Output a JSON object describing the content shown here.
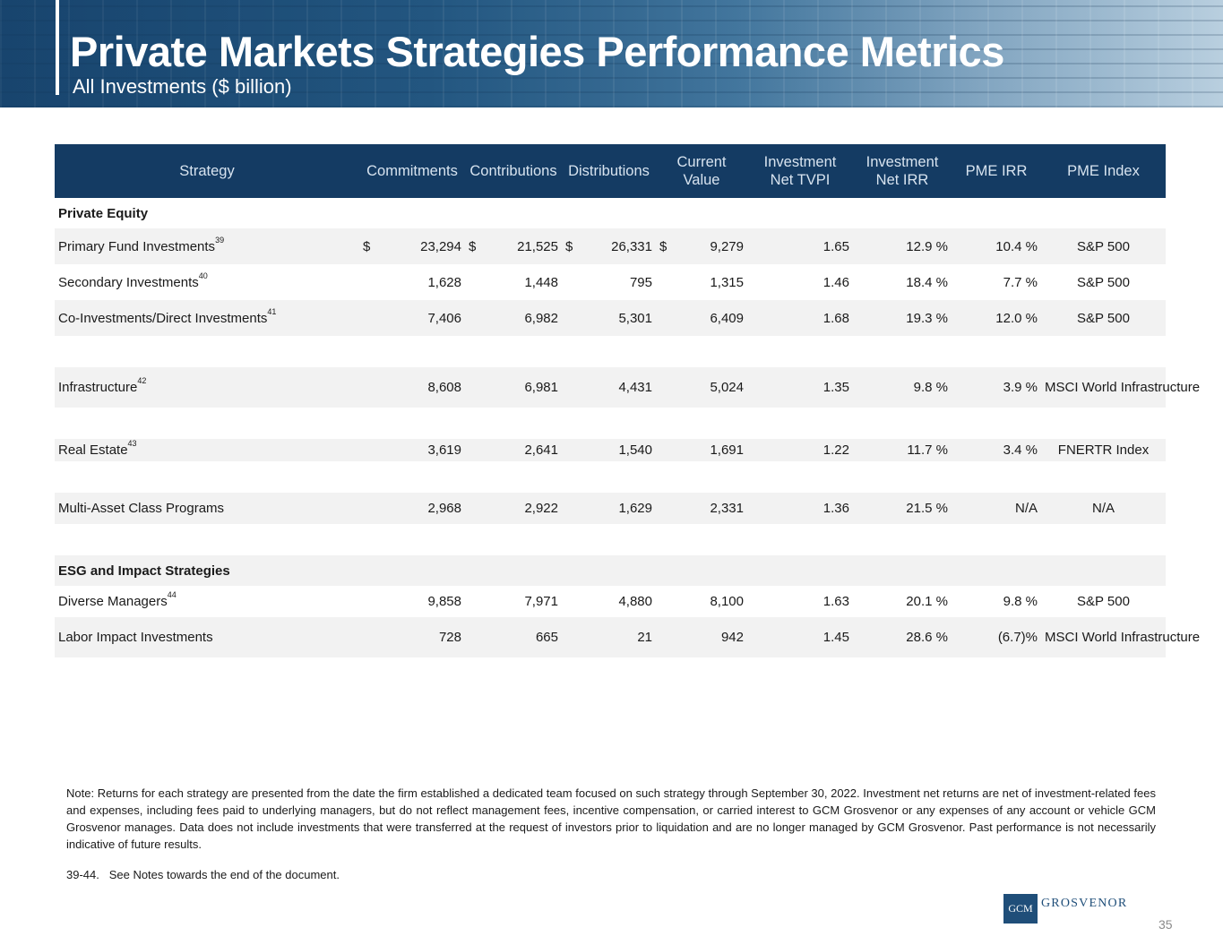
{
  "header": {
    "title": "Private Markets Strategies Performance Metrics",
    "subtitle": "All Investments ($ billion)"
  },
  "table": {
    "columns": [
      "Strategy",
      "Commitments",
      "Contributions",
      "Distributions",
      "Current Value",
      "Investment Net TVPI",
      "Investment Net IRR",
      "PME IRR",
      "PME Index"
    ],
    "section_private_equity": "Private Equity",
    "section_esg": "ESG and Impact Strategies",
    "currency_symbol": "$",
    "rows": [
      {
        "strategy": "Primary Fund Investments",
        "note": "39",
        "commitments": "23,294",
        "contributions": "21,525",
        "distributions": "26,331",
        "current_value": "9,279",
        "tvpi": "1.65",
        "net_irr": "12.9 %",
        "pme_irr": "10.4 %",
        "pme_index": "S&P 500"
      },
      {
        "strategy": "Secondary Investments",
        "note": "40",
        "commitments": "1,628",
        "contributions": "1,448",
        "distributions": "795",
        "current_value": "1,315",
        "tvpi": "1.46",
        "net_irr": "18.4 %",
        "pme_irr": "7.7 %",
        "pme_index": "S&P 500"
      },
      {
        "strategy": "Co-Investments/Direct Investments",
        "note": "41",
        "commitments": "7,406",
        "contributions": "6,982",
        "distributions": "5,301",
        "current_value": "6,409",
        "tvpi": "1.68",
        "net_irr": "19.3 %",
        "pme_irr": "12.0 %",
        "pme_index": "S&P 500"
      },
      {
        "strategy": "Infrastructure",
        "note": "42",
        "commitments": "8,608",
        "contributions": "6,981",
        "distributions": "4,431",
        "current_value": "5,024",
        "tvpi": "1.35",
        "net_irr": "9.8 %",
        "pme_irr": "3.9 %",
        "pme_index": "MSCI World Infrastructure"
      },
      {
        "strategy": "Real Estate",
        "note": "43",
        "commitments": "3,619",
        "contributions": "2,641",
        "distributions": "1,540",
        "current_value": "1,691",
        "tvpi": "1.22",
        "net_irr": "11.7 %",
        "pme_irr": "3.4 %",
        "pme_index": "FNERTR Index"
      },
      {
        "strategy": "Multi-Asset Class Programs",
        "note": "",
        "commitments": "2,968",
        "contributions": "2,922",
        "distributions": "1,629",
        "current_value": "2,331",
        "tvpi": "1.36",
        "net_irr": "21.5 %",
        "pme_irr": "N/A",
        "pme_index": "N/A"
      },
      {
        "strategy": "Diverse Managers",
        "note": "44",
        "commitments": "9,858",
        "contributions": "7,971",
        "distributions": "4,880",
        "current_value": "8,100",
        "tvpi": "1.63",
        "net_irr": "20.1 %",
        "pme_irr": "9.8 %",
        "pme_index": "S&P 500"
      },
      {
        "strategy": "Labor Impact Investments",
        "note": "",
        "commitments": "728",
        "contributions": "665",
        "distributions": "21",
        "current_value": "942",
        "tvpi": "1.45",
        "net_irr": "28.6 %",
        "pme_irr": "(6.7)%",
        "pme_index": "MSCI World Infrastructure"
      }
    ]
  },
  "note": "Note: Returns for each strategy are presented from the date the firm established a dedicated team focused on such strategy through September 30, 2022. Investment net returns are net of investment-related fees and expenses, including fees paid to underlying managers, but do not reflect management fees, incentive compensation, or carried interest to GCM Grosvenor or any expenses of any account or vehicle GCM Grosvenor manages. Data does not include investments that were transferred at the request of investors prior to liquidation and are no longer managed by GCM Grosvenor. Past performance is not necessarily indicative of future results.",
  "footnote": "39-44.   See Notes towards the end of the document.",
  "logo": {
    "mark": "GCM",
    "word": "GROSVENOR"
  },
  "page_number": "35"
}
